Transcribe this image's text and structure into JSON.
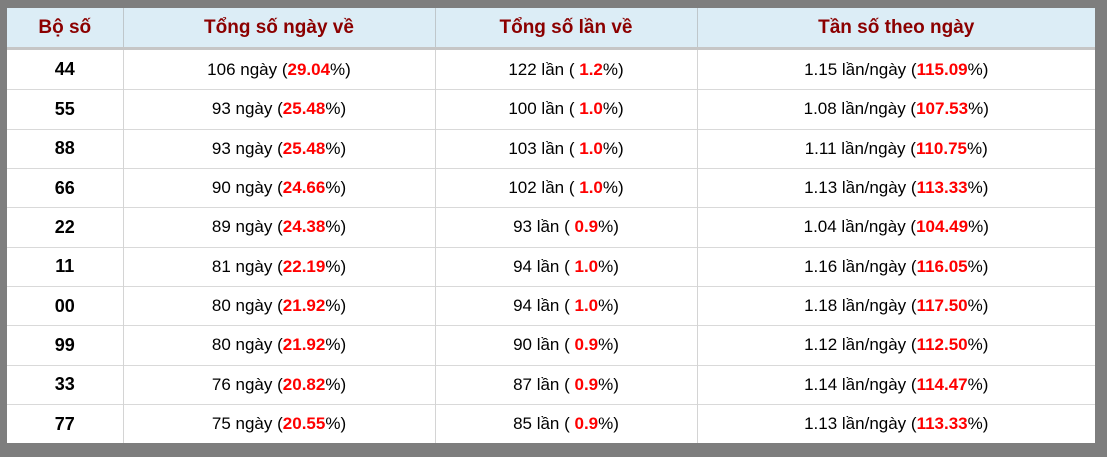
{
  "colors": {
    "frame": "#7e7e7e",
    "header_bg": "#dcedf6",
    "header_text": "#8b0000",
    "highlight": "#ff0000"
  },
  "table": {
    "columns": [
      "Bộ số",
      "Tổng số ngày về",
      "Tổng số lần về",
      "Tần số theo ngày"
    ],
    "pct_suffix": "%)",
    "rows": [
      {
        "set": "44",
        "days": "106 ngày (",
        "days_pct": "29.04",
        "times": "122 lần ( ",
        "times_pct": "1.2",
        "freq": "1.15 lần/ngày (",
        "freq_pct": "115.09"
      },
      {
        "set": "55",
        "days": "93 ngày (",
        "days_pct": "25.48",
        "times": "100 lần ( ",
        "times_pct": "1.0",
        "freq": "1.08 lần/ngày (",
        "freq_pct": "107.53"
      },
      {
        "set": "88",
        "days": "93 ngày (",
        "days_pct": "25.48",
        "times": "103 lần ( ",
        "times_pct": "1.0",
        "freq": "1.11 lần/ngày (",
        "freq_pct": "110.75"
      },
      {
        "set": "66",
        "days": "90 ngày (",
        "days_pct": "24.66",
        "times": "102 lần ( ",
        "times_pct": "1.0",
        "freq": "1.13 lần/ngày (",
        "freq_pct": "113.33"
      },
      {
        "set": "22",
        "days": "89 ngày (",
        "days_pct": "24.38",
        "times": "93 lần ( ",
        "times_pct": "0.9",
        "freq": "1.04 lần/ngày (",
        "freq_pct": "104.49"
      },
      {
        "set": "11",
        "days": "81 ngày (",
        "days_pct": "22.19",
        "times": "94 lần ( ",
        "times_pct": "1.0",
        "freq": "1.16 lần/ngày (",
        "freq_pct": "116.05"
      },
      {
        "set": "00",
        "days": "80 ngày (",
        "days_pct": "21.92",
        "times": "94 lần ( ",
        "times_pct": "1.0",
        "freq": "1.18 lần/ngày (",
        "freq_pct": "117.50"
      },
      {
        "set": "99",
        "days": "80 ngày (",
        "days_pct": "21.92",
        "times": "90 lần ( ",
        "times_pct": "0.9",
        "freq": "1.12 lần/ngày (",
        "freq_pct": "112.50"
      },
      {
        "set": "33",
        "days": "76 ngày (",
        "days_pct": "20.82",
        "times": "87 lần ( ",
        "times_pct": "0.9",
        "freq": "1.14 lần/ngày (",
        "freq_pct": "114.47"
      },
      {
        "set": "77",
        "days": "75 ngày (",
        "days_pct": "20.55",
        "times": "85 lần ( ",
        "times_pct": "0.9",
        "freq": "1.13 lần/ngày (",
        "freq_pct": "113.33"
      }
    ]
  }
}
